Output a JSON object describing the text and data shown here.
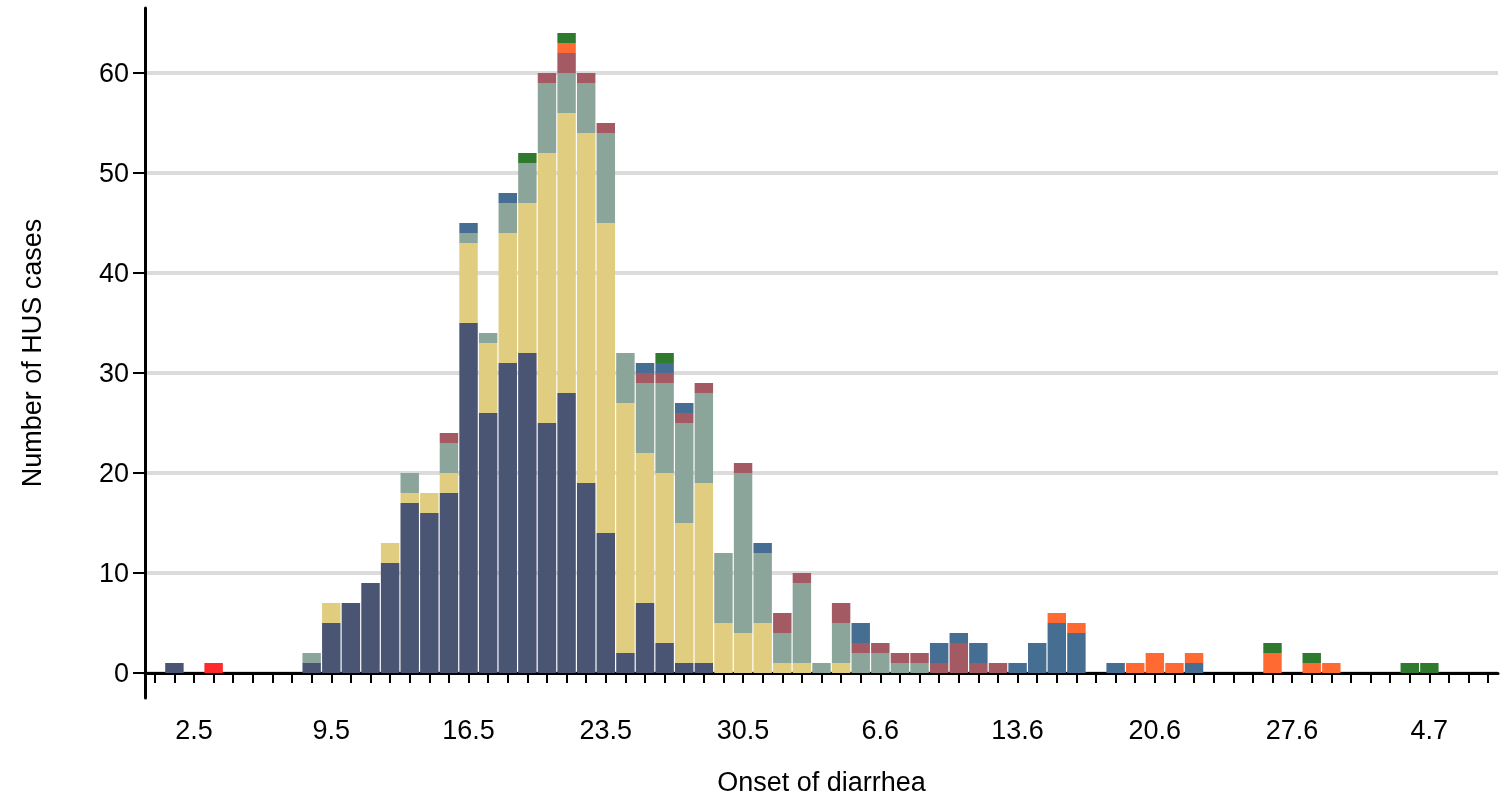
{
  "chart_data": {
    "type": "bar",
    "stacked": true,
    "xlabel": "Onset of diarrhea",
    "ylabel": "Number of HUS cases",
    "categories": [
      null,
      null,
      "2.5",
      null,
      null,
      null,
      null,
      null,
      null,
      "9.5",
      null,
      null,
      null,
      null,
      null,
      null,
      "16.5",
      null,
      null,
      null,
      null,
      null,
      null,
      "23.5",
      null,
      null,
      null,
      null,
      null,
      null,
      "30.5",
      null,
      null,
      null,
      null,
      null,
      null,
      "6.6",
      null,
      null,
      null,
      null,
      null,
      null,
      "13.6",
      null,
      null,
      null,
      null,
      null,
      null,
      "20.6",
      null,
      null,
      null,
      null,
      null,
      null,
      "27.6",
      null,
      null,
      null,
      null,
      null,
      null,
      "4.7",
      null,
      null,
      null
    ],
    "ylim": [
      -2.5,
      66.5
    ],
    "yticks": [
      0,
      10,
      20,
      30,
      40,
      50,
      60
    ],
    "grid": "y",
    "series": [
      {
        "color": "#4a5573",
        "values": [
          null,
          1,
          null,
          null,
          null,
          null,
          null,
          null,
          1,
          5,
          7,
          9,
          11,
          17,
          16,
          18,
          35,
          26,
          31,
          32,
          25,
          28,
          19,
          14,
          2,
          7,
          3,
          1,
          1,
          null,
          null,
          null,
          null,
          null,
          null,
          null,
          null,
          null,
          null,
          null,
          null,
          null,
          null,
          null,
          null,
          null,
          null,
          null,
          null,
          null,
          null,
          null,
          null,
          null,
          null,
          null,
          null,
          null,
          null,
          null,
          null,
          null,
          null,
          null,
          null,
          null,
          null,
          null,
          null
        ]
      },
      {
        "color": "#e0cd80",
        "values": [
          null,
          null,
          null,
          null,
          null,
          null,
          null,
          null,
          null,
          2,
          null,
          null,
          2,
          1,
          2,
          2,
          8,
          7,
          13,
          15,
          27,
          28,
          35,
          31,
          25,
          15,
          17,
          14,
          18,
          5,
          4,
          5,
          1,
          1,
          null,
          1,
          null,
          null,
          null,
          null,
          null,
          null,
          null,
          null,
          null,
          null,
          null,
          null,
          null,
          null,
          null,
          null,
          null,
          null,
          null,
          null,
          null,
          null,
          null,
          null,
          null,
          null,
          null,
          null,
          null,
          null,
          null,
          null,
          null
        ]
      },
      {
        "color": "#8ba59a",
        "values": [
          null,
          null,
          null,
          null,
          null,
          null,
          null,
          null,
          1,
          null,
          null,
          null,
          null,
          2,
          null,
          3,
          1,
          1,
          3,
          4,
          7,
          4,
          5,
          9,
          5,
          7,
          9,
          10,
          9,
          7,
          16,
          7,
          3,
          8,
          1,
          4,
          2,
          2,
          1,
          1,
          null,
          null,
          null,
          null,
          null,
          null,
          null,
          null,
          null,
          null,
          null,
          null,
          null,
          null,
          null,
          null,
          null,
          null,
          null,
          null,
          null,
          null,
          null,
          null,
          null,
          null,
          null,
          null,
          null
        ]
      },
      {
        "color": "#a35a63",
        "values": [
          null,
          null,
          null,
          null,
          null,
          null,
          null,
          null,
          null,
          null,
          null,
          null,
          null,
          null,
          null,
          1,
          null,
          null,
          null,
          null,
          1,
          2,
          1,
          1,
          null,
          1,
          1,
          1,
          1,
          null,
          1,
          null,
          2,
          1,
          null,
          2,
          1,
          1,
          1,
          1,
          1,
          3,
          1,
          1,
          null,
          null,
          null,
          null,
          null,
          null,
          null,
          null,
          null,
          null,
          null,
          null,
          null,
          null,
          null,
          null,
          null,
          null,
          null,
          null,
          null,
          null,
          null,
          null,
          null
        ]
      },
      {
        "color": "#466d92",
        "values": [
          null,
          null,
          null,
          null,
          null,
          null,
          null,
          null,
          null,
          null,
          null,
          null,
          null,
          null,
          null,
          null,
          1,
          null,
          1,
          null,
          null,
          null,
          null,
          null,
          null,
          1,
          1,
          1,
          null,
          null,
          null,
          1,
          null,
          null,
          null,
          null,
          2,
          null,
          null,
          null,
          2,
          1,
          2,
          null,
          1,
          3,
          5,
          4,
          null,
          1,
          null,
          null,
          null,
          1,
          null,
          null,
          null,
          null,
          null,
          null,
          null,
          null,
          null,
          null,
          null,
          null,
          null,
          null,
          null
        ]
      },
      {
        "color": "#ff6a33",
        "values": [
          null,
          null,
          null,
          null,
          null,
          null,
          null,
          null,
          null,
          null,
          null,
          null,
          null,
          null,
          null,
          null,
          null,
          null,
          null,
          null,
          null,
          1,
          null,
          null,
          null,
          null,
          null,
          null,
          null,
          null,
          null,
          null,
          null,
          null,
          null,
          null,
          null,
          null,
          null,
          null,
          null,
          null,
          null,
          null,
          null,
          null,
          1,
          1,
          null,
          null,
          1,
          2,
          1,
          1,
          null,
          null,
          null,
          2,
          null,
          1,
          1,
          null,
          null,
          null,
          null,
          null,
          null,
          null,
          null
        ]
      },
      {
        "color": "#2f7a2f",
        "values": [
          null,
          null,
          null,
          null,
          null,
          null,
          null,
          null,
          null,
          null,
          null,
          null,
          null,
          null,
          null,
          null,
          null,
          null,
          null,
          1,
          null,
          1,
          null,
          null,
          null,
          null,
          1,
          null,
          null,
          null,
          null,
          null,
          null,
          null,
          null,
          null,
          null,
          null,
          null,
          null,
          null,
          null,
          null,
          null,
          null,
          null,
          null,
          null,
          null,
          null,
          null,
          null,
          null,
          null,
          null,
          null,
          null,
          1,
          null,
          1,
          null,
          null,
          null,
          null,
          1,
          1,
          null,
          null,
          null
        ]
      },
      {
        "color": "#ff2a2a",
        "values": [
          null,
          null,
          null,
          1,
          null,
          null,
          null,
          null,
          null,
          null,
          null,
          null,
          null,
          null,
          null,
          null,
          null,
          null,
          null,
          null,
          null,
          null,
          null,
          null,
          null,
          null,
          null,
          null,
          null,
          null,
          null,
          null,
          null,
          null,
          null,
          null,
          null,
          null,
          null,
          null,
          null,
          null,
          null,
          null,
          null,
          null,
          null,
          null,
          null,
          null,
          null,
          null,
          null,
          null,
          null,
          null,
          null,
          null,
          null,
          null,
          null,
          null,
          null,
          null,
          null,
          null,
          null,
          null,
          null
        ]
      }
    ]
  }
}
